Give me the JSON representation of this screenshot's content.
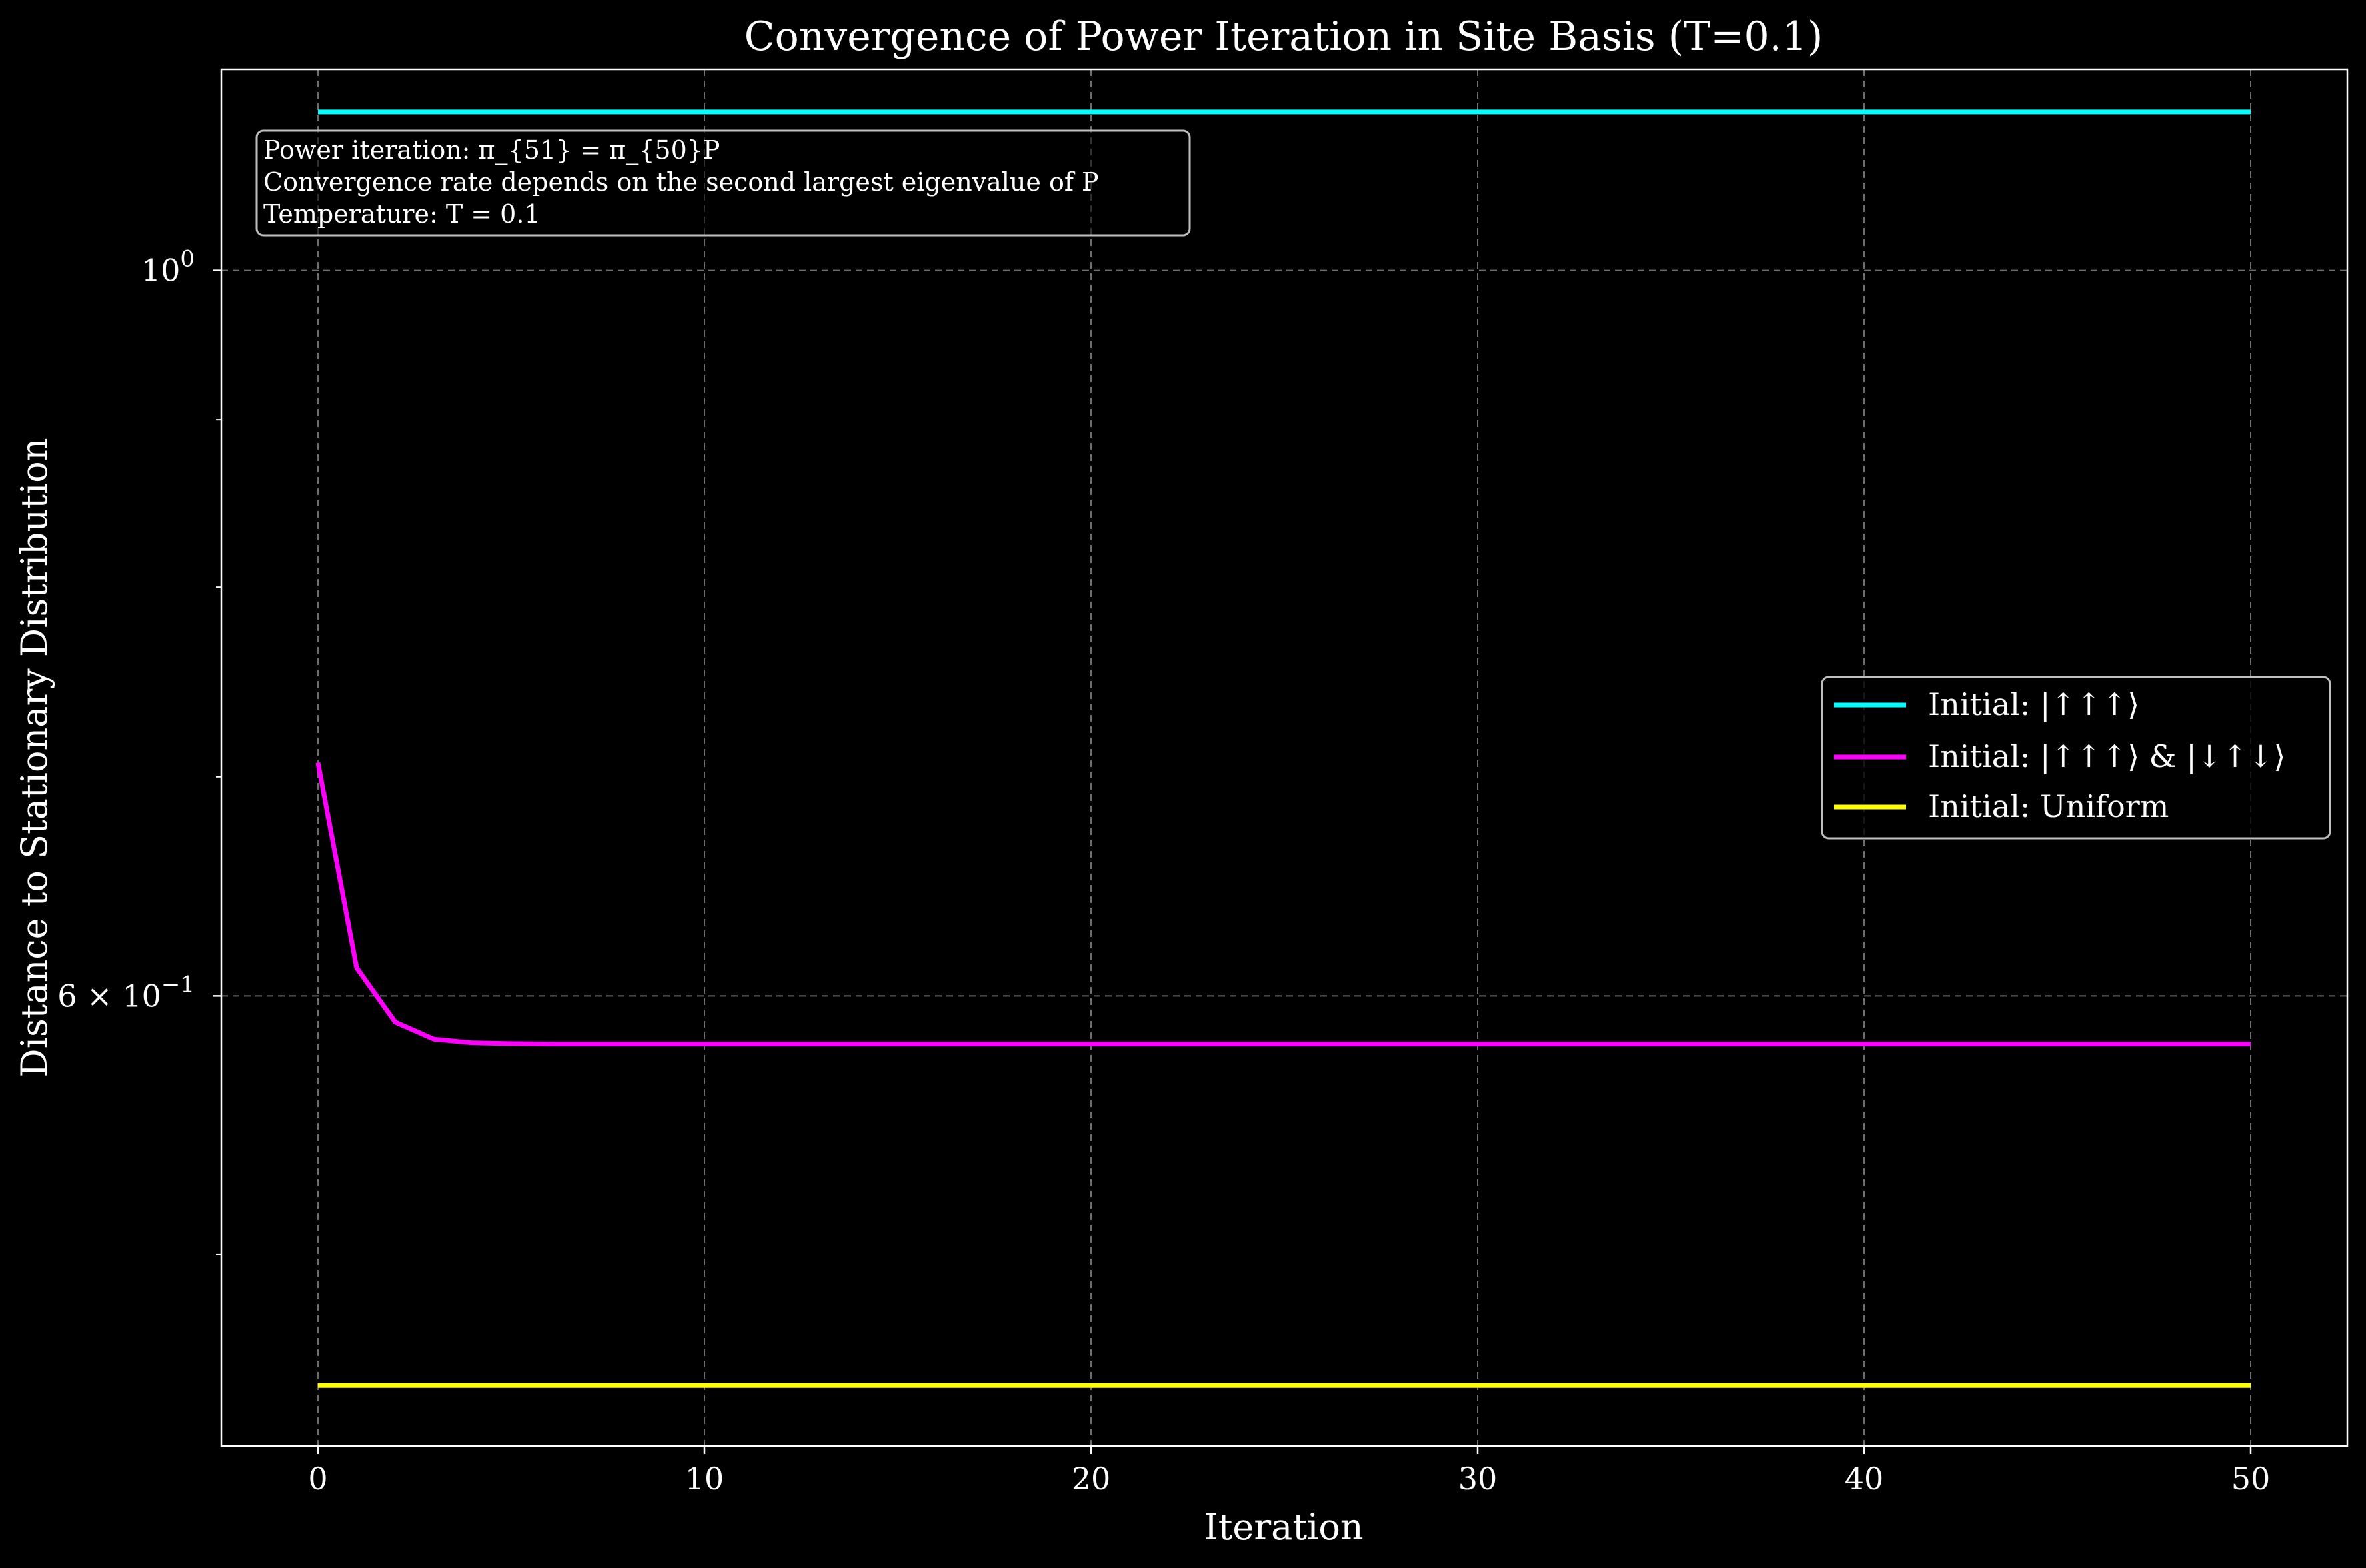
{
  "chart_data": {
    "type": "line",
    "title": "Convergence of Power Iteration in Site Basis (T=0.1)",
    "xlabel": "Iteration",
    "ylabel": "Distance to Stationary Distribution",
    "y_scale": "log",
    "xlim": [
      -2.5,
      52.5
    ],
    "ylim": [
      0.437,
      1.152
    ],
    "x_ticks": [
      0,
      10,
      20,
      30,
      40,
      50
    ],
    "x_tick_labels": [
      "0",
      "10",
      "20",
      "30",
      "40",
      "50"
    ],
    "y_major_ticks": [
      1.0,
      0.6
    ],
    "y_major_tick_labels": [
      "10^0",
      "6 × 10^-1"
    ],
    "y_minor_ticks": [
      0.5,
      0.7,
      0.8,
      0.9
    ],
    "grid": true,
    "legend_position": "center-right",
    "annotation": [
      "Power iteration: π_{51} = π_{50}P",
      "Convergence rate depends on the second largest eigenvalue of P",
      "Temperature: T = 0.1"
    ],
    "x": [
      0,
      1,
      2,
      3,
      4,
      5,
      6,
      7,
      8,
      9,
      10,
      11,
      12,
      13,
      14,
      15,
      16,
      17,
      18,
      19,
      20,
      21,
      22,
      23,
      24,
      25,
      26,
      27,
      28,
      29,
      30,
      31,
      32,
      33,
      34,
      35,
      36,
      37,
      38,
      39,
      40,
      41,
      42,
      43,
      44,
      45,
      46,
      47,
      48,
      49,
      50
    ],
    "series": [
      {
        "name": "Initial: |↑↑↑⟩",
        "color": "#00ffff",
        "values": [
          1.118,
          1.118,
          1.118,
          1.118,
          1.118,
          1.118,
          1.118,
          1.118,
          1.118,
          1.118,
          1.118,
          1.118,
          1.118,
          1.118,
          1.118,
          1.118,
          1.118,
          1.118,
          1.118,
          1.118,
          1.118,
          1.118,
          1.118,
          1.118,
          1.118,
          1.118,
          1.118,
          1.118,
          1.118,
          1.118,
          1.118,
          1.118,
          1.118,
          1.118,
          1.118,
          1.118,
          1.118,
          1.118,
          1.118,
          1.118,
          1.118,
          1.118,
          1.118,
          1.118,
          1.118,
          1.118,
          1.118,
          1.118,
          1.118,
          1.118,
          1.118
        ]
      },
      {
        "name": "Initial: |↑↑↑⟩ & |↓↑↓⟩",
        "color": "#ff00ff",
        "values": [
          0.707,
          0.612,
          0.589,
          0.582,
          0.5805,
          0.5802,
          0.58,
          0.58,
          0.58,
          0.58,
          0.58,
          0.58,
          0.58,
          0.58,
          0.58,
          0.58,
          0.58,
          0.58,
          0.58,
          0.58,
          0.58,
          0.58,
          0.58,
          0.58,
          0.58,
          0.58,
          0.58,
          0.58,
          0.58,
          0.58,
          0.58,
          0.58,
          0.58,
          0.58,
          0.58,
          0.58,
          0.58,
          0.58,
          0.58,
          0.58,
          0.58,
          0.58,
          0.58,
          0.58,
          0.58,
          0.58,
          0.58,
          0.58,
          0.58,
          0.58,
          0.58
        ]
      },
      {
        "name": "Initial: Uniform",
        "color": "#ffff00",
        "values": [
          0.456,
          0.456,
          0.456,
          0.456,
          0.456,
          0.456,
          0.456,
          0.456,
          0.456,
          0.456,
          0.456,
          0.456,
          0.456,
          0.456,
          0.456,
          0.456,
          0.456,
          0.456,
          0.456,
          0.456,
          0.456,
          0.456,
          0.456,
          0.456,
          0.456,
          0.456,
          0.456,
          0.456,
          0.456,
          0.456,
          0.456,
          0.456,
          0.456,
          0.456,
          0.456,
          0.456,
          0.456,
          0.456,
          0.456,
          0.456,
          0.456,
          0.456,
          0.456,
          0.456,
          0.456,
          0.456,
          0.456,
          0.456,
          0.456,
          0.456,
          0.456
        ]
      }
    ]
  }
}
